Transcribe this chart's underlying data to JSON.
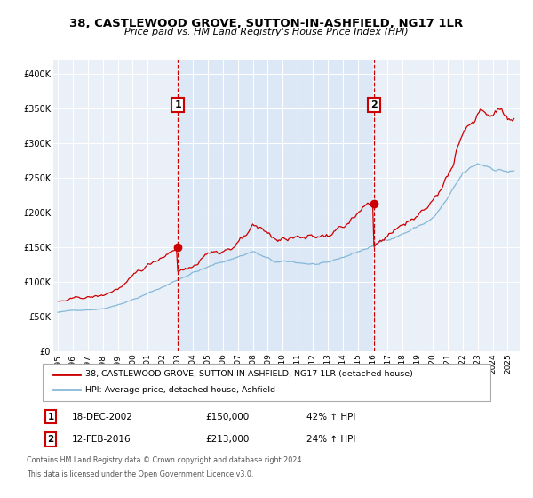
{
  "title": "38, CASTLEWOOD GROVE, SUTTON-IN-ASHFIELD, NG17 1LR",
  "subtitle": "Price paid vs. HM Land Registry's House Price Index (HPI)",
  "legend_line1": "38, CASTLEWOOD GROVE, SUTTON-IN-ASHFIELD, NG17 1LR (detached house)",
  "legend_line2": "HPI: Average price, detached house, Ashfield",
  "annotation1_label": "1",
  "annotation1_date": "18-DEC-2002",
  "annotation1_price": "£150,000",
  "annotation1_hpi": "42% ↑ HPI",
  "annotation2_label": "2",
  "annotation2_date": "12-FEB-2016",
  "annotation2_price": "£213,000",
  "annotation2_hpi": "24% ↑ HPI",
  "footnote_line1": "Contains HM Land Registry data © Crown copyright and database right 2024.",
  "footnote_line2": "This data is licensed under the Open Government Licence v3.0.",
  "transaction1_year": 2002.96,
  "transaction2_year": 2016.12,
  "transaction1_value": 150000,
  "transaction2_value": 213000,
  "red_line_color": "#cc0000",
  "blue_line_color": "#85b8d8",
  "shade_color": "#dce8f5",
  "plot_bg_color": "#eaf0f8",
  "ylim": [
    0,
    420000
  ],
  "yticks": [
    0,
    50000,
    100000,
    150000,
    200000,
    250000,
    300000,
    350000,
    400000
  ],
  "xlim_start": 1994.7,
  "xlim_end": 2025.8,
  "xticks": [
    1995,
    1996,
    1997,
    1998,
    1999,
    2000,
    2001,
    2002,
    2003,
    2004,
    2005,
    2006,
    2007,
    2008,
    2009,
    2010,
    2011,
    2012,
    2013,
    2014,
    2015,
    2016,
    2017,
    2018,
    2019,
    2020,
    2021,
    2022,
    2023,
    2024,
    2025
  ]
}
